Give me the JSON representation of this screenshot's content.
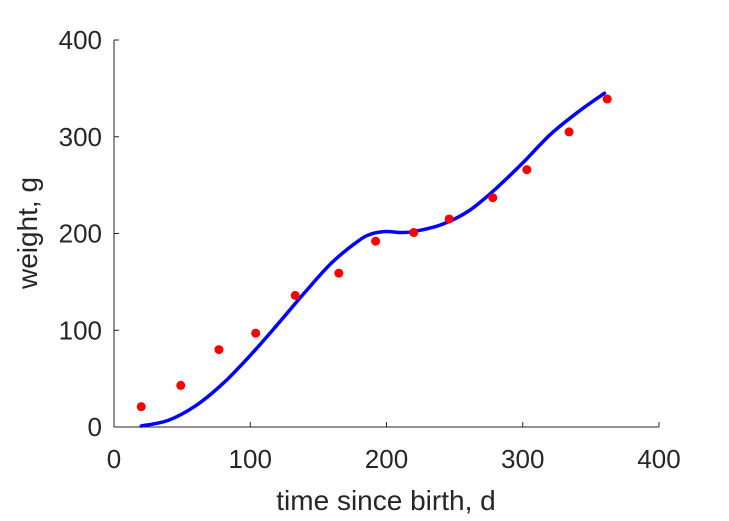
{
  "chart_data": {
    "type": "scatter",
    "title": "",
    "xlabel": "time since birth, d",
    "ylabel": "weight, g",
    "xlim": [
      0,
      400
    ],
    "ylim": [
      0,
      400
    ],
    "xticks": [
      "0",
      "100",
      "200",
      "300",
      "400"
    ],
    "yticks": [
      "0",
      "100",
      "200",
      "300",
      "400"
    ],
    "grid": false,
    "legend": "none",
    "series": [
      {
        "type": "scatter",
        "color": "#ff0000",
        "x": [
          20,
          49,
          77,
          104,
          133,
          165,
          192,
          220,
          246,
          278,
          303,
          334,
          362
        ],
        "y": [
          21,
          43,
          80,
          97,
          136,
          159,
          192,
          201,
          215,
          237,
          266,
          305,
          339
        ]
      },
      {
        "type": "line",
        "color": "#0000ff",
        "x": [
          20,
          40,
          60,
          80,
          100,
          120,
          140,
          160,
          180,
          190,
          200,
          210,
          220,
          240,
          260,
          280,
          300,
          320,
          340,
          360
        ],
        "y": [
          1,
          7,
          22,
          45,
          74,
          106,
          139,
          170,
          193,
          200,
          202,
          201,
          202,
          209,
          223,
          246,
          273,
          302,
          325,
          345
        ]
      }
    ]
  }
}
